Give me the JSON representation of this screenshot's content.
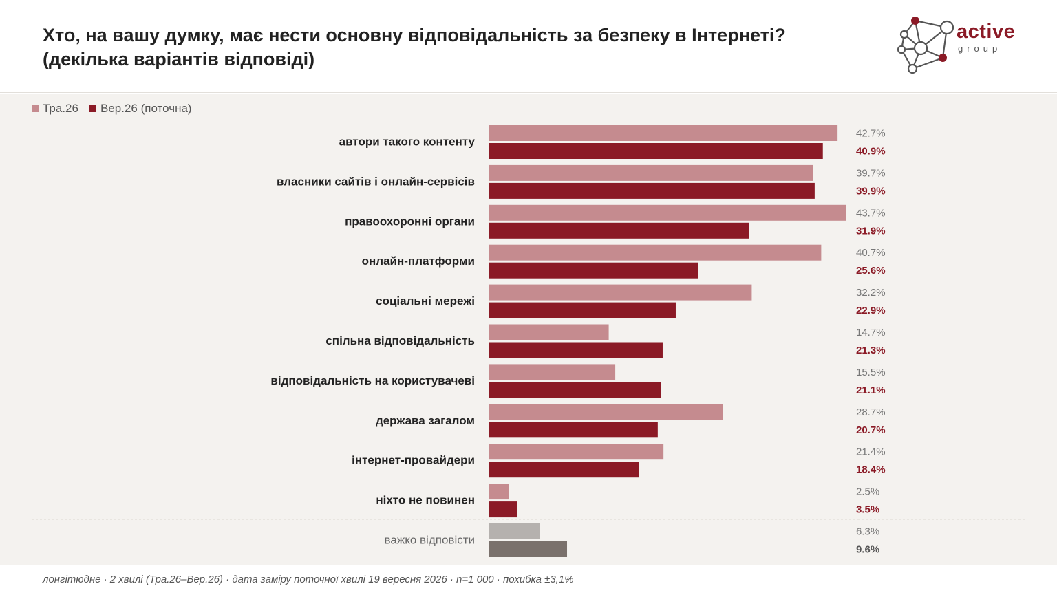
{
  "header": {
    "title_line1": "Хто, на вашу думку, має нести основну відповідальність за безпеку в Інтернеті?",
    "title_line2": "(декілька варіантів відповіді)"
  },
  "logo": {
    "word": "active",
    "sub": "group"
  },
  "footer": "лонгітюдне · 2 хвилі (Тра.26–Вер.26) · дата заміру поточної хвилі 19 вересня 2026 · n=1 000 · похибка ±3,1%",
  "colors": {
    "prev": "#c58b8f",
    "curr": "#8b1a26",
    "neutral_prev": "#b5b1ae",
    "neutral_curr": "#7a716c"
  },
  "chart_data": {
    "type": "bar",
    "orientation": "horizontal",
    "categories": [
      "автори такого контенту",
      "власники сайтів і онлайн-сервісів",
      "правоохоронні органи",
      "онлайн-платформи",
      "соціальні мережі",
      "спільна відповідальність",
      "відповідальність на користувачеві",
      "держава загалом",
      "інтернет-провайдери",
      "ніхто не повинен",
      "важко відповісти"
    ],
    "series": [
      {
        "name": "Тра.26",
        "values": [
          42.7,
          39.7,
          43.7,
          40.7,
          32.2,
          14.7,
          15.5,
          28.7,
          21.4,
          2.5,
          6.3
        ]
      },
      {
        "name": "Вер.26 (поточна)",
        "values": [
          40.9,
          39.9,
          31.9,
          25.6,
          22.9,
          21.3,
          21.1,
          20.7,
          18.4,
          3.5,
          9.6
        ]
      }
    ],
    "value_suffix": "%",
    "neutral_category": "важко відповісти",
    "xlim": [
      0,
      43.7
    ],
    "legend": "top-left"
  }
}
